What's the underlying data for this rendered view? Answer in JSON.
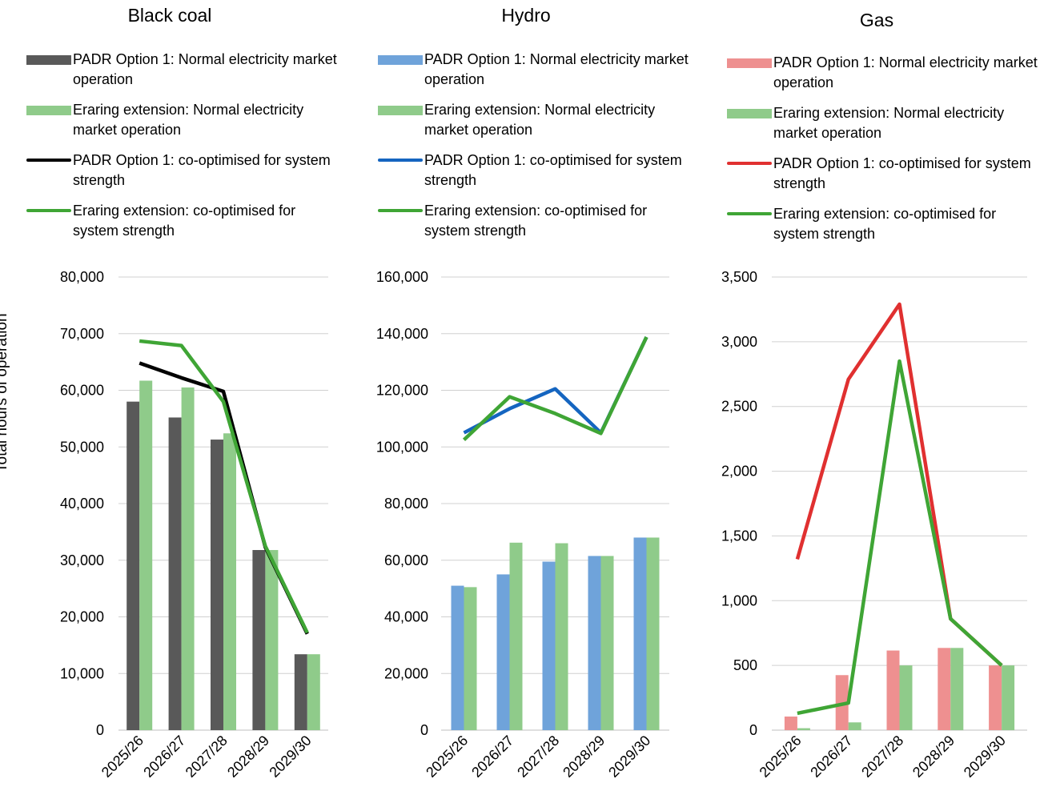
{
  "ylabel": "Total hours of operation",
  "charts": [
    {
      "title": "Black coal",
      "legend": [
        {
          "label": "PADR Option 1: Normal electricity market operation",
          "kind": "bar",
          "color": "#595959"
        },
        {
          "label": "Eraring extension: Normal electricity market operation",
          "kind": "bar",
          "color": "#8fcb8a"
        },
        {
          "label": "PADR Option 1: co-optimised for system strength",
          "kind": "line",
          "color": "#000000"
        },
        {
          "label": "Eraring extension: co-optimised for system strength",
          "kind": "line",
          "color": "#3fa535"
        }
      ]
    },
    {
      "title": "Hydro",
      "legend": [
        {
          "label": "PADR Option 1: Normal electricity market operation",
          "kind": "bar",
          "color": "#6fa3da"
        },
        {
          "label": "Eraring extension: Normal electricity market operation",
          "kind": "bar",
          "color": "#8fcb8a"
        },
        {
          "label": "PADR Option 1: co-optimised for system strength",
          "kind": "line",
          "color": "#1565c0"
        },
        {
          "label": "Eraring extension: co-optimised for system strength",
          "kind": "line",
          "color": "#3fa535"
        }
      ]
    },
    {
      "title": "Gas",
      "legend": [
        {
          "label": "PADR Option 1: Normal electricity market operation",
          "kind": "bar",
          "color": "#ee9090"
        },
        {
          "label": "Eraring extension: Normal electricity market operation",
          "kind": "bar",
          "color": "#8fcb8a"
        },
        {
          "label": "PADR Option 1: co-optimised for system strength",
          "kind": "line",
          "color": "#e03030"
        },
        {
          "label": "Eraring extension: co-optimised for system strength",
          "kind": "line",
          "color": "#3fa535"
        }
      ]
    }
  ],
  "chart_data": [
    {
      "type": "bar",
      "title": "Black coal",
      "ylabel": "Total hours of operation",
      "categories": [
        "2025/26",
        "2026/27",
        "2027/28",
        "2028/29",
        "2029/30"
      ],
      "ylim": [
        0,
        80000
      ],
      "yticks": [
        "0",
        "10,000",
        "20,000",
        "30,000",
        "40,000",
        "50,000",
        "60,000",
        "70,000",
        "80,000"
      ],
      "grid": true,
      "series": [
        {
          "name": "PADR Option 1: Normal electricity market operation",
          "kind": "bar",
          "color": "#595959",
          "values": [
            58000,
            55200,
            51300,
            31800,
            13400
          ]
        },
        {
          "name": "Eraring extension: Normal electricity market operation",
          "kind": "bar",
          "color": "#8fcb8a",
          "values": [
            61700,
            60500,
            52400,
            31800,
            13400
          ]
        },
        {
          "name": "PADR Option 1: co-optimised for system strength",
          "kind": "line",
          "color": "#000000",
          "values": [
            64800,
            62200,
            59800,
            32300,
            17000
          ]
        },
        {
          "name": "Eraring extension: co-optimised for system strength",
          "kind": "line",
          "color": "#3fa535",
          "values": [
            68700,
            67900,
            58000,
            32500,
            17200
          ]
        }
      ]
    },
    {
      "type": "bar",
      "title": "Hydro",
      "categories": [
        "2025/26",
        "2026/27",
        "2027/28",
        "2028/29",
        "2029/30"
      ],
      "ylim": [
        0,
        160000
      ],
      "yticks": [
        "0",
        "20,000",
        "40,000",
        "60,000",
        "80,000",
        "100,000",
        "120,000",
        "140,000",
        "160,000"
      ],
      "grid": true,
      "series": [
        {
          "name": "PADR Option 1: Normal electricity market operation",
          "kind": "bar",
          "color": "#6fa3da",
          "values": [
            51000,
            55000,
            59500,
            61500,
            68000
          ]
        },
        {
          "name": "Eraring extension: Normal electricity market operation",
          "kind": "bar",
          "color": "#8fcb8a",
          "values": [
            50500,
            66200,
            66000,
            61500,
            68000
          ]
        },
        {
          "name": "PADR Option 1: co-optimised for system strength",
          "kind": "line",
          "color": "#1565c0",
          "values": [
            105000,
            113500,
            120500,
            105000,
            138800
          ]
        },
        {
          "name": "Eraring extension: co-optimised for system strength",
          "kind": "line",
          "color": "#3fa535",
          "values": [
            102500,
            117700,
            111800,
            104800,
            138800
          ]
        }
      ]
    },
    {
      "type": "bar",
      "title": "Gas",
      "categories": [
        "2025/26",
        "2026/27",
        "2027/28",
        "2028/29",
        "2029/30"
      ],
      "ylim": [
        0,
        3500
      ],
      "yticks": [
        "0",
        "500",
        "1,000",
        "1,500",
        "2,000",
        "2,500",
        "3,000",
        "3,500"
      ],
      "grid": true,
      "series": [
        {
          "name": "PADR Option 1: Normal electricity market operation",
          "kind": "bar",
          "color": "#ee9090",
          "values": [
            105,
            425,
            615,
            635,
            500
          ]
        },
        {
          "name": "Eraring extension: Normal electricity market operation",
          "kind": "bar",
          "color": "#8fcb8a",
          "values": [
            15,
            60,
            500,
            635,
            500
          ]
        },
        {
          "name": "PADR Option 1: co-optimised for system strength",
          "kind": "line",
          "color": "#e03030",
          "values": [
            1320,
            2710,
            3290,
            860,
            500
          ]
        },
        {
          "name": "Eraring extension: co-optimised for system strength",
          "kind": "line",
          "color": "#3fa535",
          "values": [
            130,
            210,
            2850,
            860,
            500
          ]
        }
      ]
    }
  ]
}
